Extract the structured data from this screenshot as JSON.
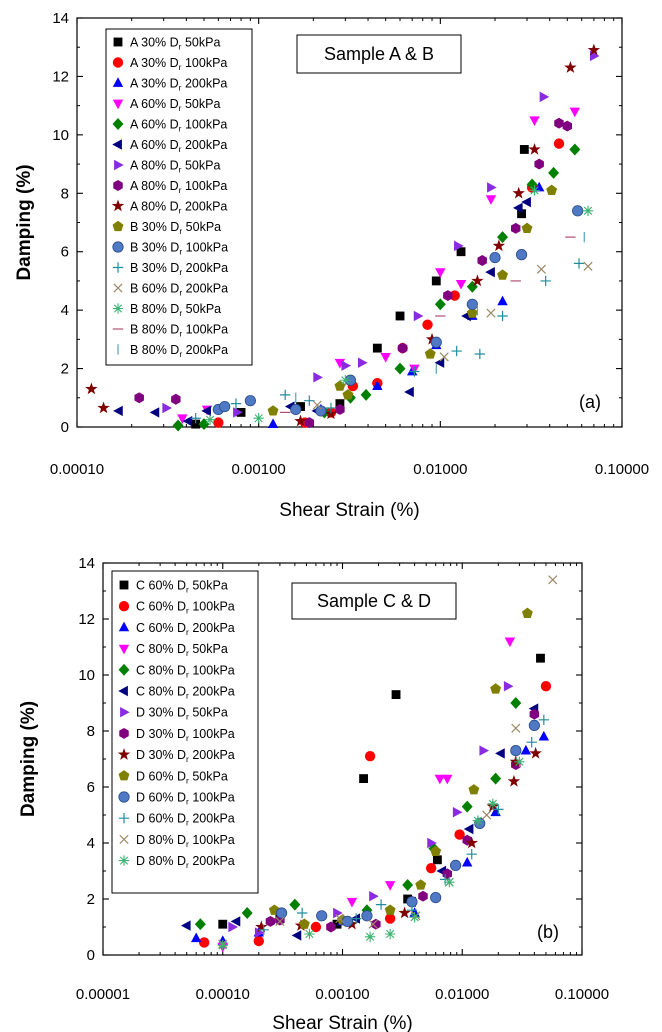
{
  "chart_data": [
    {
      "type": "scatter",
      "panel_label": "(a)",
      "annotation": "Sample A & B",
      "xlabel": "Shear Strain (%)",
      "ylabel": "Damping (%)",
      "xscale": "log",
      "xlim": [
        0.0001,
        0.1
      ],
      "ylim": [
        0,
        14
      ],
      "xticks": [
        0.0001,
        0.001,
        0.01,
        0.1
      ],
      "xtick_labels": [
        "0.00010",
        "0.00100",
        "0.01000",
        "0.10000"
      ],
      "yticks": [
        0,
        2,
        4,
        6,
        8,
        10,
        12,
        14
      ],
      "ytick_labels": [
        "0",
        "2",
        "4",
        "6",
        "8",
        "10",
        "12",
        "14"
      ],
      "legend_position": "top-left",
      "series": [
        {
          "name": "A 30% Dr 50kPa",
          "label_parts": [
            "A 30% D",
            "r",
            " 50kPa"
          ],
          "marker": "square",
          "color": "#000000",
          "x": [
            0.00045,
            0.0008,
            0.0017,
            0.0028,
            0.0045,
            0.006,
            0.0095,
            0.013,
            0.028,
            0.029
          ],
          "y": [
            0.1,
            0.5,
            0.7,
            0.8,
            2.7,
            3.8,
            5.0,
            6.0,
            7.3,
            9.5
          ]
        },
        {
          "name": "A 30% Dr 100kPa",
          "label_parts": [
            "A 30% D",
            "r",
            " 100kPa"
          ],
          "marker": "circle",
          "color": "#ff0000",
          "x": [
            0.0006,
            0.0018,
            0.0025,
            0.0033,
            0.0045,
            0.0062,
            0.0085,
            0.012,
            0.032,
            0.045
          ],
          "y": [
            0.15,
            0.15,
            0.5,
            1.4,
            1.5,
            2.7,
            3.5,
            4.5,
            8.2,
            9.7
          ]
        },
        {
          "name": "A 30% Dr 200kPa",
          "label_parts": [
            "A 30% D",
            "r",
            " 200kPa"
          ],
          "marker": "triangle-up",
          "color": "#0000ff",
          "x": [
            0.0012,
            0.0022,
            0.0045,
            0.007,
            0.0095,
            0.015,
            0.022,
            0.035
          ],
          "y": [
            0.1,
            0.6,
            1.4,
            1.9,
            2.8,
            3.8,
            4.3,
            8.2
          ]
        },
        {
          "name": "A 60% Dr 50kPa",
          "label_parts": [
            "A 60% D",
            "r",
            " 50kPa"
          ],
          "marker": "triangle-down",
          "color": "#ff00ff",
          "x": [
            0.00038,
            0.00052,
            0.0028,
            0.005,
            0.0072,
            0.01,
            0.013,
            0.019,
            0.033,
            0.055
          ],
          "y": [
            0.3,
            0.6,
            2.2,
            2.4,
            2.0,
            5.3,
            4.9,
            7.8,
            10.5,
            10.8
          ]
        },
        {
          "name": "A 60% Dr 100kPa",
          "label_parts": [
            "A 60% D",
            "r",
            " 100kPa"
          ],
          "marker": "diamond",
          "color": "#008000",
          "x": [
            0.00036,
            0.0005,
            0.0023,
            0.0032,
            0.0039,
            0.006,
            0.01,
            0.015,
            0.022,
            0.032,
            0.042,
            0.055
          ],
          "y": [
            0.05,
            0.1,
            0.5,
            1.0,
            1.1,
            2.0,
            4.2,
            4.8,
            6.5,
            8.3,
            8.7,
            9.5
          ]
        },
        {
          "name": "A 60% Dr 200kPa",
          "label_parts": [
            "A 60% D",
            "r",
            " 200kPa"
          ],
          "marker": "triangle-left",
          "color": "#000080",
          "x": [
            0.00017,
            0.00027,
            0.00041,
            0.00052,
            0.0015,
            0.0021,
            0.0068,
            0.01,
            0.014,
            0.019,
            0.027,
            0.03
          ],
          "y": [
            0.55,
            0.5,
            0.2,
            0.55,
            0.7,
            0.55,
            1.2,
            2.2,
            3.8,
            5.3,
            7.5,
            7.7
          ]
        },
        {
          "name": "A 80% Dr 50kPa",
          "label_parts": [
            "A 80% D",
            "r",
            " 50kPa"
          ],
          "marker": "triangle-right",
          "color": "#8a2be2",
          "x": [
            0.00031,
            0.00076,
            0.0021,
            0.003,
            0.0037,
            0.0075,
            0.0125,
            0.019,
            0.037,
            0.07
          ],
          "y": [
            0.65,
            0.5,
            1.7,
            2.1,
            2.2,
            3.8,
            6.2,
            8.2,
            11.3,
            12.7
          ]
        },
        {
          "name": "A 80% Dr 100kPa",
          "label_parts": [
            "A 80% D",
            "r",
            " 100kPa"
          ],
          "marker": "hexagon",
          "color": "#800080",
          "x": [
            0.00022,
            0.00035,
            0.0019,
            0.0028,
            0.0062,
            0.011,
            0.017,
            0.026,
            0.035,
            0.045,
            0.05
          ],
          "y": [
            1.0,
            0.95,
            0.15,
            0.6,
            2.7,
            4.5,
            5.7,
            6.8,
            9.0,
            10.4,
            10.3
          ]
        },
        {
          "name": "A 80% Dr 200kPa",
          "label_parts": [
            "A 80% D",
            "r",
            " 200kPa"
          ],
          "marker": "star",
          "color": "#800000",
          "x": [
            0.00012,
            0.00014,
            0.0017,
            0.0025,
            0.009,
            0.016,
            0.021,
            0.027,
            0.033,
            0.052,
            0.07
          ],
          "y": [
            1.3,
            0.65,
            0.2,
            0.45,
            3.0,
            5.0,
            6.2,
            8.0,
            9.5,
            12.3,
            12.9
          ]
        },
        {
          "name": "B 30% Dr 50kPa",
          "label_parts": [
            "B 30% D",
            "r",
            " 50kPa"
          ],
          "marker": "pentagon",
          "color": "#808000",
          "x": [
            0.0012,
            0.0028,
            0.0031,
            0.0088,
            0.015,
            0.022,
            0.03,
            0.041
          ],
          "y": [
            0.55,
            1.4,
            1.1,
            2.5,
            3.9,
            5.2,
            6.8,
            8.1
          ]
        },
        {
          "name": "B 30% Dr 100kPa",
          "label_parts": [
            "B 30% D",
            "r",
            " 100kPa"
          ],
          "marker": "sphere",
          "color": "#4f79c4",
          "x": [
            0.0006,
            0.00065,
            0.0009,
            0.0016,
            0.0022,
            0.0032,
            0.0095,
            0.015,
            0.02,
            0.028,
            0.057
          ],
          "y": [
            0.6,
            0.7,
            0.9,
            0.6,
            0.55,
            1.6,
            2.9,
            4.2,
            5.8,
            5.9,
            7.4
          ]
        },
        {
          "name": "B 30% Dr 200kPa",
          "label_parts": [
            "B 30% D",
            "r",
            " 200kPa"
          ],
          "marker": "plus",
          "color": "#1f8fa0",
          "x": [
            0.00045,
            0.00075,
            0.0014,
            0.0019,
            0.0025,
            0.0072,
            0.0123,
            0.0165,
            0.022,
            0.038,
            0.058
          ],
          "y": [
            0.3,
            0.8,
            1.1,
            0.9,
            0.65,
            1.9,
            2.6,
            2.5,
            3.8,
            5.0,
            5.6
          ]
        },
        {
          "name": "B 60% Dr 200kPa",
          "label_parts": [
            "B 60% D",
            "r",
            " 200kPa"
          ],
          "marker": "x",
          "color": "#9c8866",
          "x": [
            0.0021,
            0.0105,
            0.019,
            0.036,
            0.065
          ],
          "y": [
            0.75,
            2.4,
            3.9,
            5.4,
            5.5
          ]
        },
        {
          "name": "B 80% Dr 50kPa",
          "label_parts": [
            "B 80% D",
            "r",
            " 50kPa"
          ],
          "marker": "asterisk",
          "color": "#3cb371",
          "x": [
            0.00054,
            0.001,
            0.003,
            0.033,
            0.065
          ],
          "y": [
            0.25,
            0.3,
            1.6,
            8.1,
            7.4
          ]
        },
        {
          "name": "B 80% Dr 100kPa",
          "label_parts": [
            "B 80% D",
            "r",
            " 100kPa"
          ],
          "marker": "hline",
          "color": "#b05070",
          "x": [
            0.0014,
            0.01,
            0.026,
            0.052
          ],
          "y": [
            0.5,
            3.8,
            5.0,
            6.5
          ]
        },
        {
          "name": "B 80% Dr 200kPa",
          "label_parts": [
            "B 80% D",
            "r",
            " 200kPa"
          ],
          "marker": "vline",
          "color": "#5aa0b8",
          "x": [
            0.0016,
            0.0095,
            0.016,
            0.062
          ],
          "y": [
            1.0,
            2.0,
            4.0,
            6.5
          ]
        }
      ]
    },
    {
      "type": "scatter",
      "panel_label": "(b)",
      "annotation": "Sample C & D",
      "xlabel": "Shear Strain (%)",
      "ylabel": "Damping (%)",
      "xscale": "log",
      "xlim": [
        1e-05,
        0.1
      ],
      "ylim": [
        0,
        14
      ],
      "xticks": [
        1e-05,
        0.0001,
        0.001,
        0.01,
        0.1
      ],
      "xtick_labels": [
        "0.00001",
        "0.00010",
        "0.00100",
        "0.01000",
        "0.10000"
      ],
      "yticks": [
        0,
        2,
        4,
        6,
        8,
        10,
        12,
        14
      ],
      "ytick_labels": [
        "0",
        "2",
        "4",
        "6",
        "8",
        "10",
        "12",
        "14"
      ],
      "legend_position": "top-left",
      "series": [
        {
          "name": "C 60% Dr 50kPa",
          "label_parts": [
            "C 60% D",
            "r",
            " 50kPa"
          ],
          "marker": "square",
          "color": "#000000",
          "x": [
            0.0001,
            0.0003,
            0.0009,
            0.0035,
            0.0062,
            0.0015,
            0.0028,
            0.045
          ],
          "y": [
            1.1,
            1.3,
            1.1,
            2.0,
            3.4,
            6.3,
            9.3,
            10.6
          ]
        },
        {
          "name": "C 60% Dr 100kPa",
          "label_parts": [
            "C 60% D",
            "r",
            " 100kPa"
          ],
          "marker": "circle",
          "color": "#ff0000",
          "x": [
            7e-05,
            0.0002,
            0.0006,
            0.0025,
            0.0055,
            0.0095,
            0.0017,
            0.05
          ],
          "y": [
            0.45,
            0.5,
            1.0,
            1.3,
            3.1,
            4.3,
            7.1,
            9.6
          ]
        },
        {
          "name": "C 60% Dr 200kPa",
          "label_parts": [
            "C 60% D",
            "r",
            " 200kPa"
          ],
          "marker": "triangle-up",
          "color": "#0000ff",
          "x": [
            6e-05,
            0.0001,
            0.0002,
            0.001,
            0.004,
            0.011,
            0.019,
            0.034,
            0.048
          ],
          "y": [
            0.6,
            0.5,
            0.8,
            1.2,
            1.5,
            3.3,
            5.1,
            7.3,
            7.8
          ]
        },
        {
          "name": "C 80% Dr 50kPa",
          "label_parts": [
            "C 80% D",
            "r",
            " 50kPa"
          ],
          "marker": "triangle-down",
          "color": "#ff00ff",
          "x": [
            0.0001,
            0.0012,
            0.0025,
            0.0065,
            0.0075,
            0.025
          ],
          "y": [
            0.3,
            1.9,
            2.5,
            6.3,
            6.3,
            11.2
          ]
        },
        {
          "name": "C 80% Dr 100kPa",
          "label_parts": [
            "C 80% D",
            "r",
            " 100kPa"
          ],
          "marker": "diamond",
          "color": "#008000",
          "x": [
            6.5e-05,
            0.00016,
            0.0004,
            0.0016,
            0.0035,
            0.0058,
            0.011,
            0.019,
            0.028
          ],
          "y": [
            1.1,
            1.5,
            1.8,
            1.6,
            2.5,
            3.8,
            5.3,
            6.3,
            9.0
          ]
        },
        {
          "name": "C 80% Dr 200kPa",
          "label_parts": [
            "C 80% D",
            "r",
            " 200kPa"
          ],
          "marker": "triangle-left",
          "color": "#000080",
          "x": [
            5e-05,
            0.00013,
            0.00042,
            0.0013,
            0.0038,
            0.0068,
            0.0115,
            0.021,
            0.04
          ],
          "y": [
            1.05,
            1.2,
            0.7,
            1.3,
            1.9,
            3.0,
            4.5,
            7.2,
            8.8
          ]
        },
        {
          "name": "D 30% Dr 50kPa",
          "label_parts": [
            "D 30% D",
            "r",
            " 50kPa"
          ],
          "marker": "triangle-right",
          "color": "#8a2be2",
          "x": [
            0.00012,
            0.0002,
            0.0009,
            0.0018,
            0.0055,
            0.009,
            0.015,
            0.024
          ],
          "y": [
            1.0,
            0.8,
            1.5,
            2.1,
            4.0,
            5.1,
            7.3,
            9.6
          ]
        },
        {
          "name": "D 30% Dr 100kPa",
          "label_parts": [
            "D 30% D",
            "r",
            " 100kPa"
          ],
          "marker": "hexagon",
          "color": "#800080",
          "x": [
            0.00025,
            0.0003,
            0.0008,
            0.0019,
            0.0047,
            0.0075,
            0.011,
            0.028,
            0.04
          ],
          "y": [
            1.2,
            1.25,
            1.0,
            1.1,
            2.1,
            2.9,
            4.1,
            6.8,
            8.6
          ]
        },
        {
          "name": "D 30% Dr 200kPa",
          "label_parts": [
            "D 30% D",
            "r",
            " 200kPa"
          ],
          "marker": "star",
          "color": "#800000",
          "x": [
            0.00021,
            0.00045,
            0.0012,
            0.0033,
            0.012,
            0.018,
            0.027,
            0.028,
            0.041
          ],
          "y": [
            1.0,
            1.05,
            1.1,
            1.5,
            4.0,
            5.3,
            6.2,
            6.9,
            7.2
          ]
        },
        {
          "name": "D 60% Dr 50kPa",
          "label_parts": [
            "D 60% D",
            "r",
            " 50kPa"
          ],
          "marker": "pentagon",
          "color": "#808000",
          "x": [
            0.00027,
            0.00048,
            0.001,
            0.0025,
            0.0045,
            0.006,
            0.0125,
            0.019,
            0.035
          ],
          "y": [
            1.6,
            1.1,
            1.25,
            1.6,
            2.5,
            3.7,
            5.9,
            9.5,
            12.2
          ]
        },
        {
          "name": "D 60% Dr 100kPa",
          "label_parts": [
            "D 60% D",
            "r",
            " 100kPa"
          ],
          "marker": "sphere",
          "color": "#4f79c4",
          "x": [
            0.00031,
            0.00067,
            0.0011,
            0.0016,
            0.0038,
            0.006,
            0.0088,
            0.014,
            0.028,
            0.04
          ],
          "y": [
            1.5,
            1.4,
            1.2,
            1.4,
            1.9,
            2.05,
            3.2,
            4.7,
            7.3,
            8.2
          ]
        },
        {
          "name": "D 60% Dr 200kPa",
          "label_parts": [
            "D 60% D",
            "r",
            " 200kPa"
          ],
          "marker": "plus",
          "color": "#1f8fa0",
          "x": [
            0.00022,
            0.00046,
            0.0013,
            0.0021,
            0.0038,
            0.0072,
            0.012,
            0.02,
            0.038,
            0.048
          ],
          "y": [
            0.9,
            1.5,
            1.3,
            1.8,
            1.6,
            2.7,
            3.6,
            5.2,
            7.6,
            8.4
          ]
        },
        {
          "name": "D 80% Dr 100kPa",
          "label_parts": [
            "D 80% D",
            "r",
            " 100kPa"
          ],
          "marker": "x",
          "color": "#9c8866",
          "x": [
            0.0001,
            0.0003,
            0.00095,
            0.0018,
            0.0041,
            0.0078,
            0.016,
            0.028,
            0.057
          ],
          "y": [
            0.4,
            1.2,
            1.3,
            1.1,
            1.4,
            2.6,
            5.0,
            8.1,
            13.4
          ]
        },
        {
          "name": "D 80% Dr 200kPa",
          "label_parts": [
            "D 80% D",
            "r",
            " 200kPa"
          ],
          "marker": "asterisk",
          "color": "#3cb371",
          "x": [
            0.0001,
            0.00053,
            0.0017,
            0.0025,
            0.004,
            0.0078,
            0.0135,
            0.018,
            0.03
          ],
          "y": [
            0.35,
            0.75,
            0.65,
            0.75,
            1.35,
            2.6,
            4.8,
            5.4,
            6.9
          ]
        }
      ]
    }
  ]
}
